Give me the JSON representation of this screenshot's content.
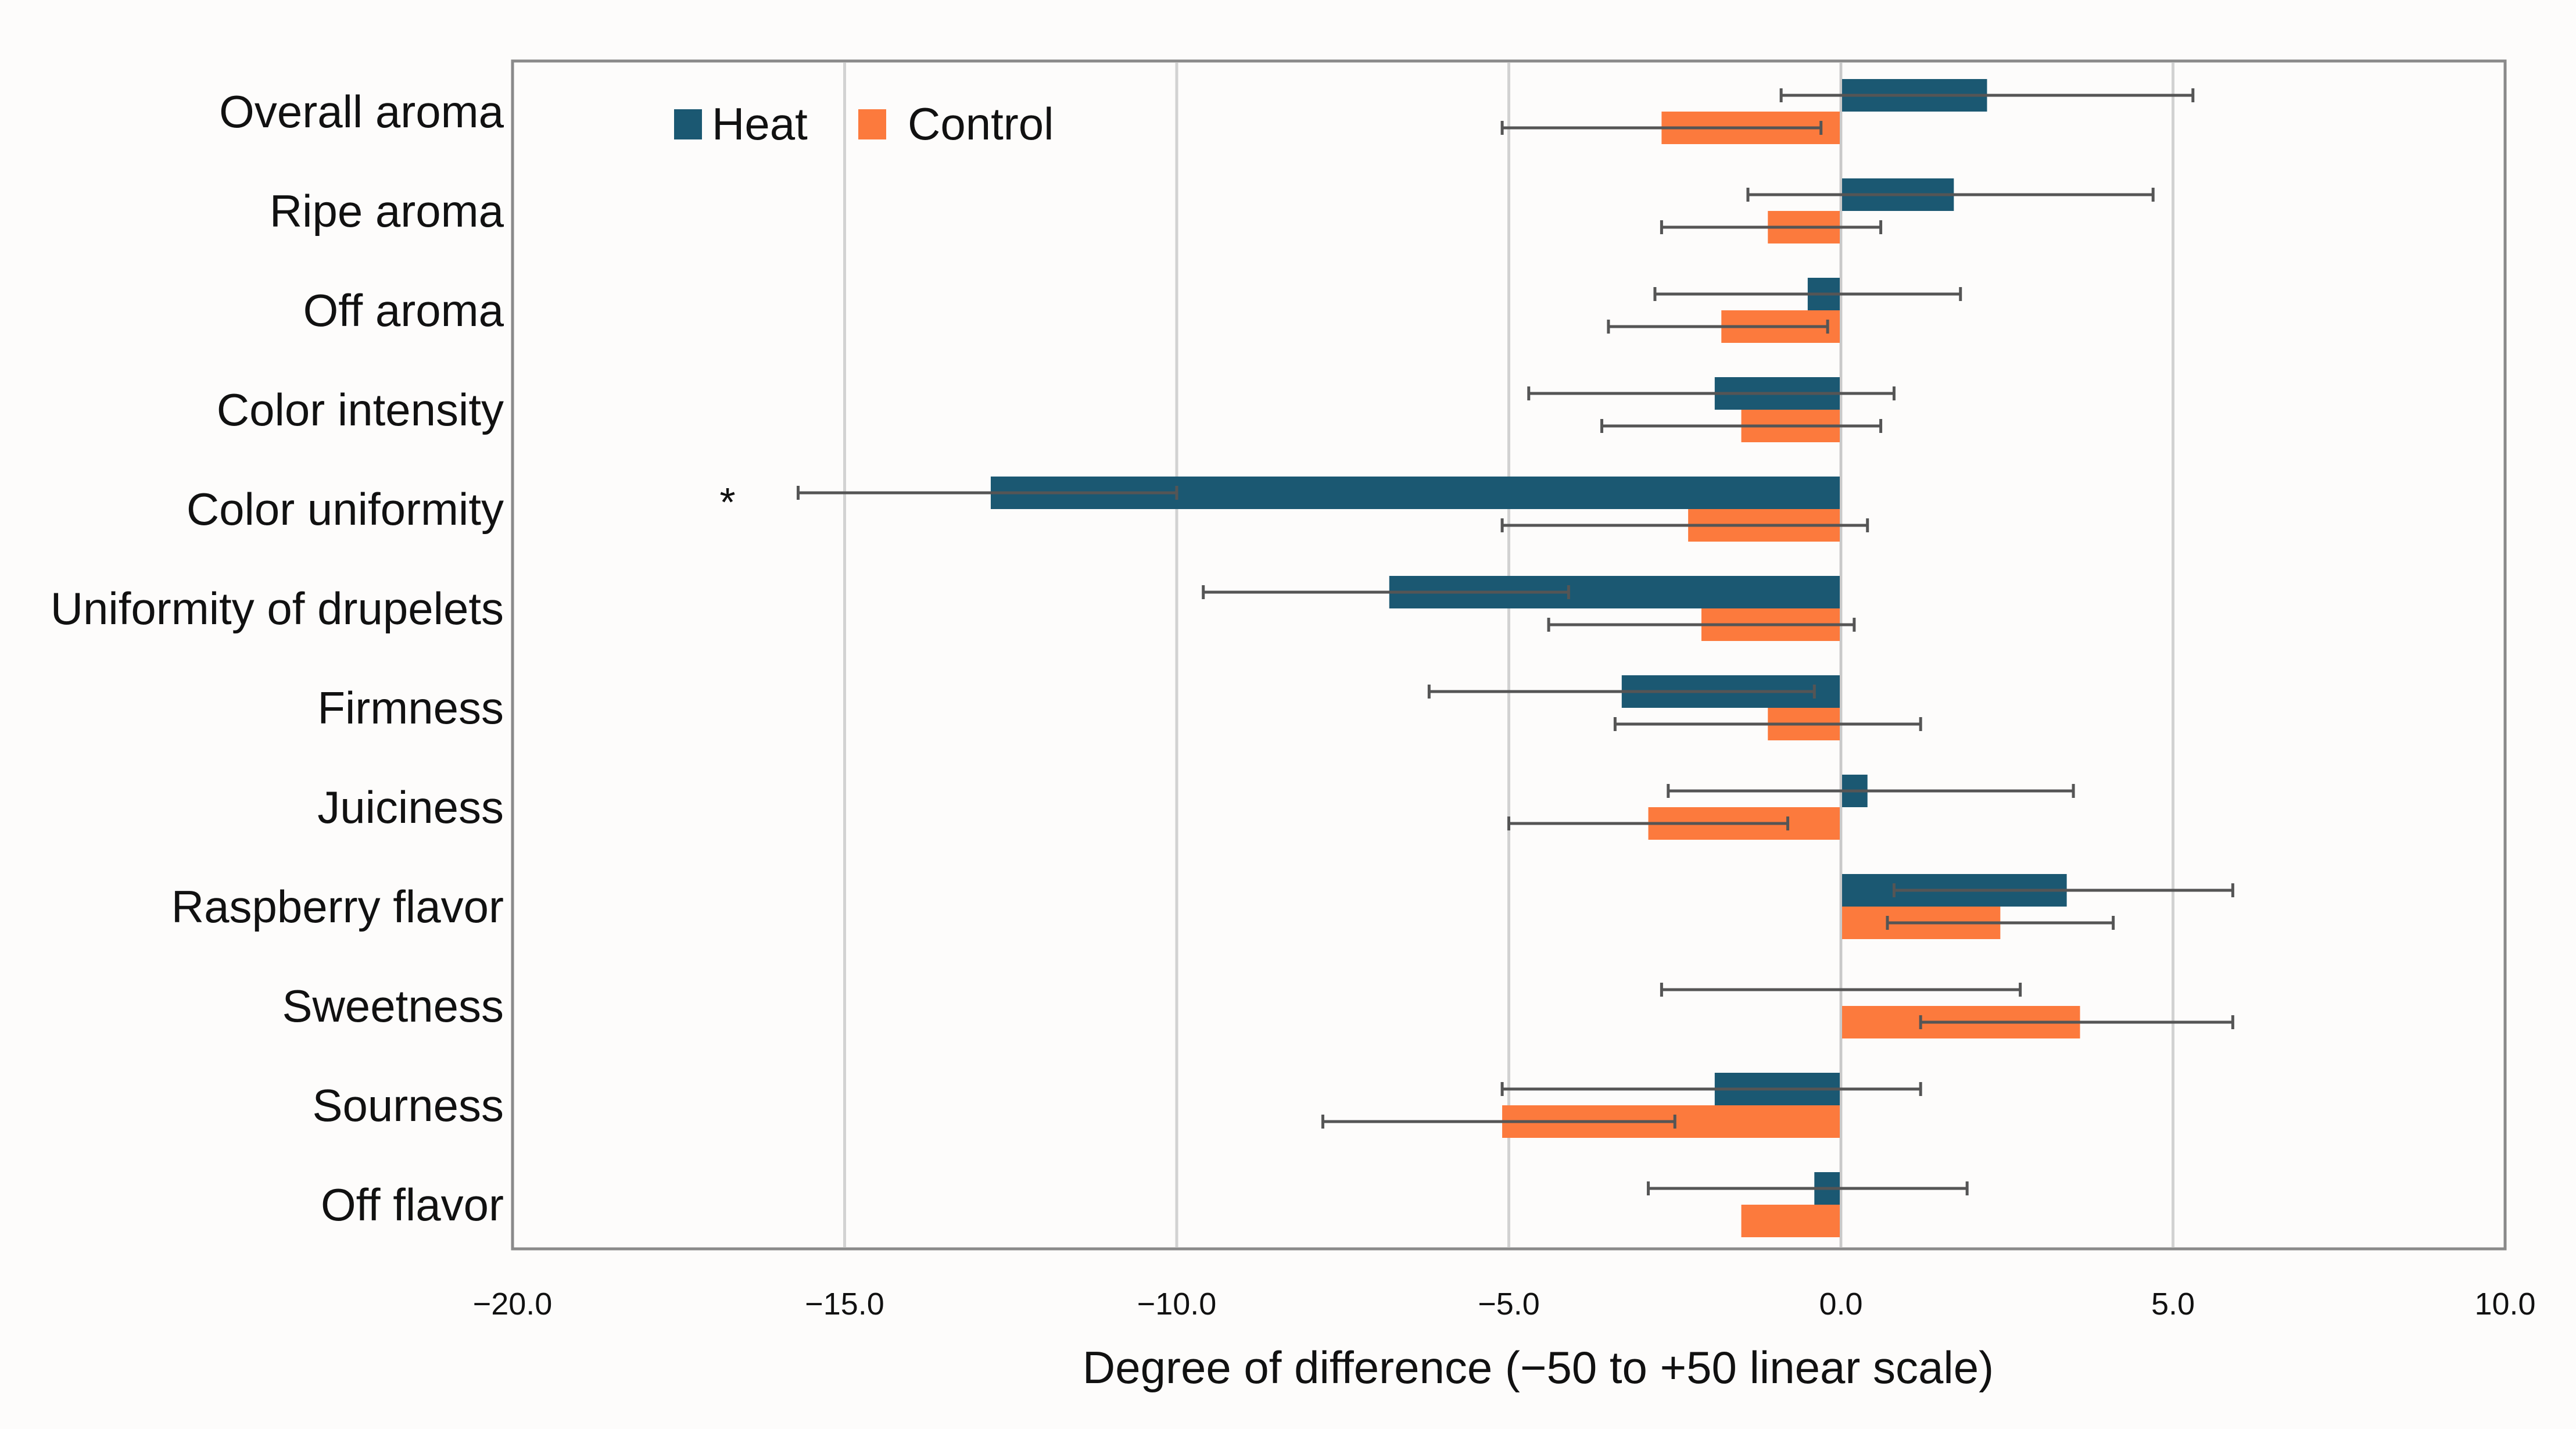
{
  "chart_data": {
    "type": "bar",
    "orientation": "horizontal",
    "title": "",
    "xlabel": "Degree of difference (−50 to +50 linear scale)",
    "ylabel": "",
    "xlim": [
      -20,
      10
    ],
    "xticks": [
      -20,
      -15,
      -10,
      -5,
      0,
      5,
      10
    ],
    "xtick_labels": [
      "−20.0",
      "−15.0",
      "−10.0",
      "−5.0",
      "0.0",
      "5.0",
      "10.0"
    ],
    "grid": "vertical",
    "legend": "top-left",
    "categories": [
      "Overall aroma",
      "Ripe aroma",
      "Off aroma",
      "Color intensity",
      "Color uniformity",
      "Uniformity of drupelets",
      "Firmness",
      "Juiciness",
      "Raspberry flavor",
      "Sweetness",
      "Sourness",
      "Off flavor"
    ],
    "series": [
      {
        "name": "Heat",
        "color": "#1b5872",
        "values": [
          2.2,
          1.7,
          -0.5,
          -1.9,
          -12.8,
          -6.8,
          -3.3,
          0.4,
          3.4,
          0.0,
          -1.9,
          -0.4
        ],
        "err_low": [
          -0.9,
          -1.4,
          -2.8,
          -4.7,
          -15.7,
          -9.6,
          -6.2,
          -2.6,
          0.8,
          -2.7,
          -5.1,
          -2.9
        ],
        "err_high": [
          5.3,
          4.7,
          1.8,
          0.8,
          -10.0,
          -4.1,
          -0.4,
          3.5,
          5.9,
          2.7,
          1.2,
          1.9
        ]
      },
      {
        "name": "Control",
        "color": "#fc7a3d",
        "values": [
          -2.7,
          -1.1,
          -1.8,
          -1.5,
          -2.3,
          -2.1,
          -1.1,
          -2.9,
          2.4,
          3.6,
          -5.1,
          -1.5
        ],
        "err_low": [
          -5.1,
          -2.7,
          -3.5,
          -3.6,
          -5.1,
          -4.4,
          -3.4,
          -5.0,
          0.7,
          1.2,
          -7.8,
          -1.5
        ],
        "err_high": [
          -0.3,
          0.6,
          -0.2,
          0.6,
          0.4,
          0.2,
          1.2,
          -0.8,
          4.1,
          5.9,
          -2.5,
          -1.5
        ]
      }
    ],
    "annotations": [
      {
        "text": "*",
        "category": "Color uniformity"
      }
    ]
  }
}
